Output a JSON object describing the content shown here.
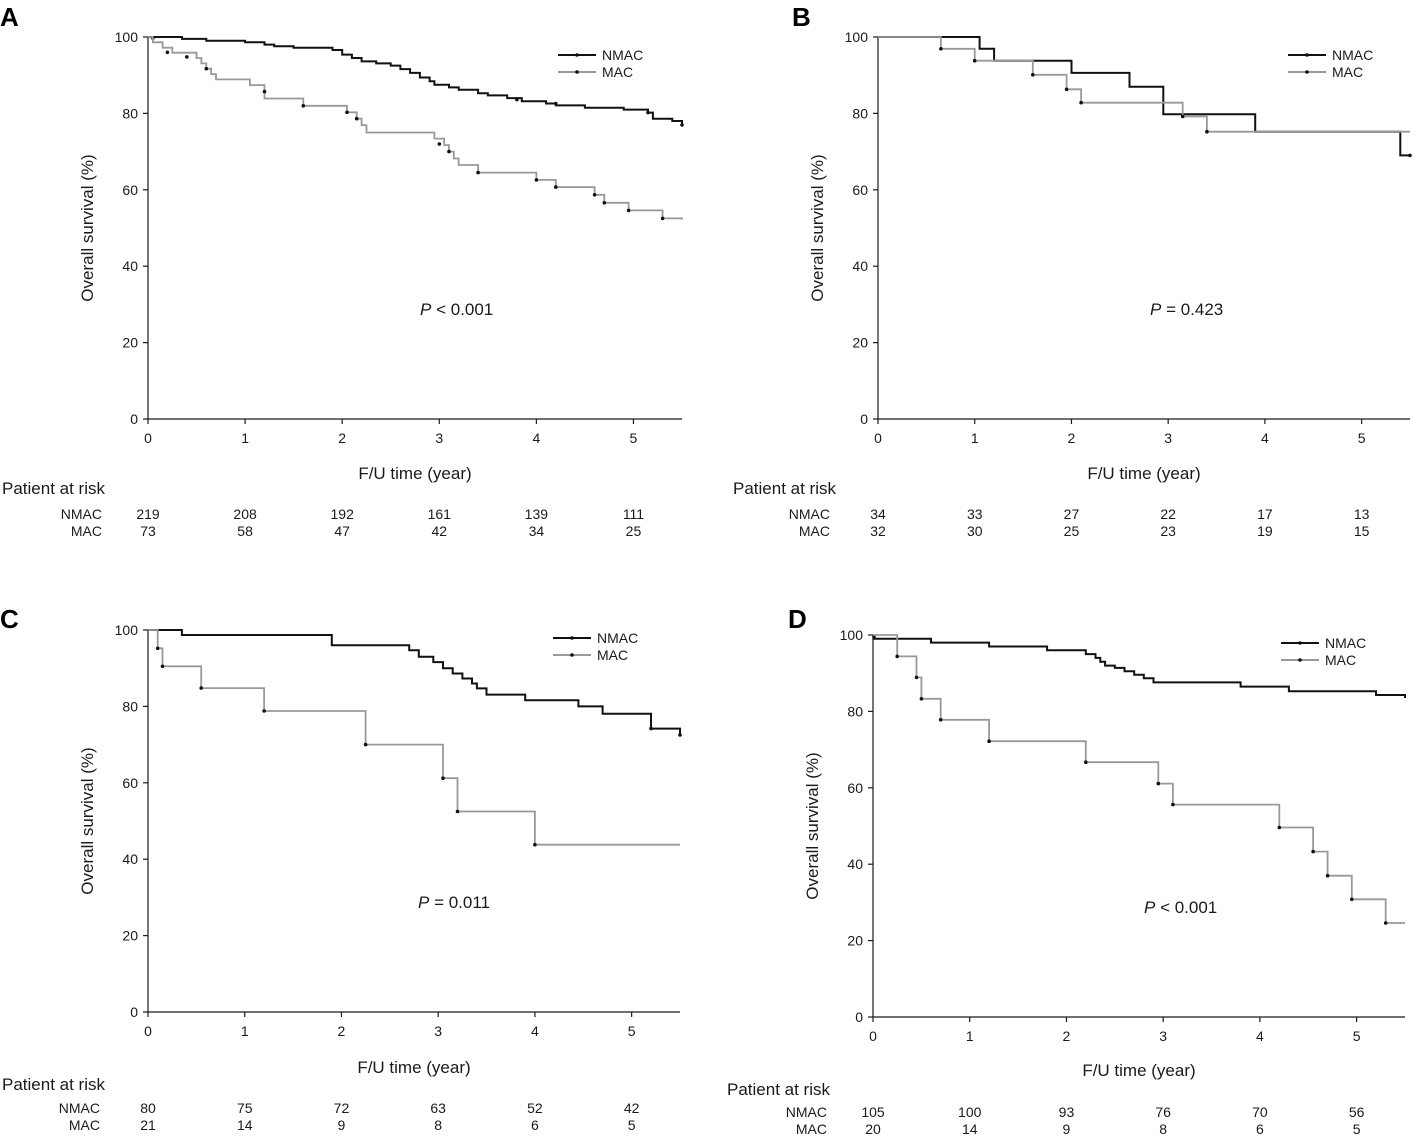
{
  "colors": {
    "NMAC": "#111111",
    "MAC": "#999999",
    "axis": "#1a1a1a"
  },
  "chart_data": [
    {
      "panel": "A",
      "type": "line",
      "xlabel": "F/U time (year)",
      "ylabel": "Overall survival (%)",
      "xlim": [
        0,
        5.5
      ],
      "ylim": [
        0,
        100
      ],
      "xticks": [
        0,
        1,
        2,
        3,
        4,
        5
      ],
      "yticks": [
        0,
        20,
        40,
        60,
        80,
        100
      ],
      "legend": [
        "NMAC",
        "MAC"
      ],
      "p_value": {
        "prefix": "P",
        "text": " < 0.001"
      },
      "risk_title": "Patient at risk",
      "risk_table": [
        {
          "label": "NMAC",
          "values": [
            "219",
            "208",
            "192",
            "161",
            "139",
            "111"
          ]
        },
        {
          "label": "MAC",
          "values": [
            "73",
            "58",
            "47",
            "42",
            "34",
            "25"
          ]
        }
      ],
      "series": [
        {
          "name": "NMAC",
          "points": [
            [
              0,
              100
            ],
            [
              0.35,
              99.5
            ],
            [
              0.6,
              99
            ],
            [
              1,
              98.6
            ],
            [
              1.2,
              98
            ],
            [
              1.3,
              97.6
            ],
            [
              1.5,
              97.2
            ],
            [
              1.9,
              96.6
            ],
            [
              2.0,
              95.4
            ],
            [
              2.1,
              94.5
            ],
            [
              2.2,
              93.6
            ],
            [
              2.35,
              93.1
            ],
            [
              2.5,
              92.5
            ],
            [
              2.6,
              91.6
            ],
            [
              2.7,
              90.6
            ],
            [
              2.8,
              89.4
            ],
            [
              2.9,
              88.4
            ],
            [
              2.95,
              87.5
            ],
            [
              3.1,
              86.8
            ],
            [
              3.2,
              86.2
            ],
            [
              3.4,
              85.3
            ],
            [
              3.5,
              84.7
            ],
            [
              3.7,
              84
            ],
            [
              3.85,
              83.2
            ],
            [
              4.1,
              82.6
            ],
            [
              4.2,
              82.1
            ],
            [
              4.5,
              81.5
            ],
            [
              4.9,
              81
            ],
            [
              5.15,
              80.2
            ],
            [
              5.2,
              78.6
            ],
            [
              5.4,
              78
            ],
            [
              5.5,
              77
            ]
          ],
          "censor": [
            [
              0.05,
              99.7
            ],
            [
              3.8,
              83.6
            ],
            [
              4.2,
              82.6
            ],
            [
              5.15,
              80.2
            ],
            [
              5.5,
              77
            ]
          ]
        },
        {
          "name": "MAC",
          "points": [
            [
              0,
              100
            ],
            [
              0.05,
              98.6
            ],
            [
              0.15,
              97.2
            ],
            [
              0.25,
              95.9
            ],
            [
              0.5,
              94.5
            ],
            [
              0.55,
              93.1
            ],
            [
              0.6,
              91.7
            ],
            [
              0.65,
              90.3
            ],
            [
              0.7,
              88.9
            ],
            [
              1.05,
              87.4
            ],
            [
              1.2,
              85.7
            ],
            [
              1.2,
              83.9
            ],
            [
              1.6,
              82
            ],
            [
              2.05,
              80.3
            ],
            [
              2.15,
              78.6
            ],
            [
              2.2,
              76.9
            ],
            [
              2.25,
              75
            ],
            [
              2.95,
              73.4
            ],
            [
              3.05,
              71.7
            ],
            [
              3.1,
              70
            ],
            [
              3.15,
              68.2
            ],
            [
              3.2,
              66.5
            ],
            [
              3.4,
              64.5
            ],
            [
              4.0,
              62.6
            ],
            [
              4.2,
              60.7
            ],
            [
              4.6,
              58.7
            ],
            [
              4.7,
              56.6
            ],
            [
              4.95,
              54.6
            ],
            [
              5.3,
              52.5
            ],
            [
              5.5,
              52.2
            ]
          ],
          "censor": [
            [
              0.2,
              96
            ],
            [
              0.4,
              94.8
            ],
            [
              0.6,
              91.7
            ],
            [
              1.2,
              85.7
            ],
            [
              1.6,
              82
            ],
            [
              2.05,
              80.3
            ],
            [
              2.15,
              78.6
            ],
            [
              3.0,
              72
            ],
            [
              3.1,
              70
            ],
            [
              3.4,
              64.5
            ],
            [
              4.0,
              62.6
            ],
            [
              4.2,
              60.7
            ],
            [
              4.6,
              58.7
            ],
            [
              4.7,
              56.6
            ],
            [
              4.95,
              54.6
            ],
            [
              5.3,
              52.5
            ]
          ]
        }
      ]
    },
    {
      "panel": "B",
      "type": "line",
      "xlabel": "F/U time (year)",
      "ylabel": "Overall survival (%)",
      "xlim": [
        0,
        5.5
      ],
      "ylim": [
        0,
        100
      ],
      "xticks": [
        0,
        1,
        2,
        3,
        4,
        5
      ],
      "yticks": [
        0,
        20,
        40,
        60,
        80,
        100
      ],
      "legend": [
        "NMAC",
        "MAC"
      ],
      "p_value": {
        "prefix": "P",
        "text": " = 0.423"
      },
      "risk_title": "Patient at risk",
      "risk_table": [
        {
          "label": "NMAC",
          "values": [
            "34",
            "33",
            "27",
            "22",
            "17",
            "13"
          ]
        },
        {
          "label": "MAC",
          "values": [
            "32",
            "30",
            "25",
            "23",
            "19",
            "15"
          ]
        }
      ],
      "series": [
        {
          "name": "NMAC",
          "points": [
            [
              0,
              100
            ],
            [
              1.05,
              96.9
            ],
            [
              1.2,
              93.8
            ],
            [
              2.0,
              90.6
            ],
            [
              2.6,
              87
            ],
            [
              2.95,
              79.8
            ],
            [
              3.9,
              75.2
            ],
            [
              5.4,
              75.2
            ],
            [
              5.4,
              69
            ],
            [
              5.5,
              69
            ]
          ],
          "censor": [
            [
              5.5,
              69
            ]
          ]
        },
        {
          "name": "MAC",
          "points": [
            [
              0,
              100
            ],
            [
              0.65,
              96.9
            ],
            [
              1.0,
              93.8
            ],
            [
              1.6,
              90.1
            ],
            [
              1.95,
              86.3
            ],
            [
              2.1,
              82.8
            ],
            [
              3.15,
              79.2
            ],
            [
              3.4,
              75.2
            ],
            [
              5.5,
              75.2
            ]
          ],
          "censor": [
            [
              0.65,
              96.9
            ],
            [
              1.0,
              93.8
            ],
            [
              1.6,
              90.1
            ],
            [
              1.95,
              86.3
            ],
            [
              2.1,
              82.8
            ],
            [
              3.15,
              79.2
            ],
            [
              3.4,
              75.2
            ]
          ]
        }
      ]
    },
    {
      "panel": "C",
      "type": "line",
      "xlabel": "F/U time (year)",
      "ylabel": "Overall survival (%)",
      "xlim": [
        0,
        5.5
      ],
      "ylim": [
        0,
        100
      ],
      "xticks": [
        0,
        1,
        2,
        3,
        4,
        5
      ],
      "yticks": [
        0,
        20,
        40,
        60,
        80,
        100
      ],
      "legend": [
        "NMAC",
        "MAC"
      ],
      "p_value": {
        "prefix": "P",
        "text": " = 0.011"
      },
      "risk_title": "Patient at risk",
      "risk_table": [
        {
          "label": "NMAC",
          "values": [
            "80",
            "75",
            "72",
            "63",
            "52",
            "42"
          ]
        },
        {
          "label": "MAC",
          "values": [
            "21",
            "14",
            "9",
            "8",
            "6",
            "5"
          ]
        }
      ],
      "series": [
        {
          "name": "NMAC",
          "points": [
            [
              0,
              100
            ],
            [
              0.35,
              98.7
            ],
            [
              1.9,
              96
            ],
            [
              2.7,
              94.7
            ],
            [
              2.8,
              93
            ],
            [
              2.95,
              91.6
            ],
            [
              3.05,
              90
            ],
            [
              3.15,
              88.6
            ],
            [
              3.25,
              87.3
            ],
            [
              3.35,
              86
            ],
            [
              3.4,
              84.7
            ],
            [
              3.5,
              83.1
            ],
            [
              3.9,
              81.6
            ],
            [
              4.45,
              80
            ],
            [
              4.7,
              78.1
            ],
            [
              5.2,
              74.2
            ],
            [
              5.5,
              72.5
            ]
          ],
          "censor": [
            [
              5.2,
              74.2
            ],
            [
              5.5,
              72.5
            ]
          ]
        },
        {
          "name": "MAC",
          "points": [
            [
              0,
              100
            ],
            [
              0.1,
              95.2
            ],
            [
              0.15,
              90.5
            ],
            [
              0.55,
              84.8
            ],
            [
              1.2,
              78.8
            ],
            [
              2.25,
              70
            ],
            [
              3.05,
              61.2
            ],
            [
              3.2,
              52.5
            ],
            [
              4.0,
              43.8
            ],
            [
              5.5,
              43.8
            ]
          ],
          "censor": [
            [
              0.1,
              95.2
            ],
            [
              0.15,
              90.5
            ],
            [
              0.55,
              84.8
            ],
            [
              1.2,
              78.8
            ],
            [
              2.25,
              70
            ],
            [
              3.05,
              61.2
            ],
            [
              3.2,
              52.5
            ],
            [
              4.0,
              43.8
            ]
          ]
        }
      ]
    },
    {
      "panel": "D",
      "type": "line",
      "xlabel": "F/U time (year)",
      "ylabel": "Overall survival (%)",
      "xlim": [
        0,
        5.5
      ],
      "ylim": [
        0,
        100
      ],
      "xticks": [
        0,
        1,
        2,
        3,
        4,
        5
      ],
      "yticks": [
        0,
        20,
        40,
        60,
        80,
        100
      ],
      "legend": [
        "NMAC",
        "MAC"
      ],
      "p_value": {
        "prefix": "P",
        "text": " < 0.001"
      },
      "risk_title": "Patient at risk",
      "risk_table": [
        {
          "label": "NMAC",
          "values": [
            "105",
            "100",
            "93",
            "76",
            "70",
            "56"
          ]
        },
        {
          "label": "MAC",
          "values": [
            "20",
            "14",
            "9",
            "8",
            "6",
            "5"
          ]
        }
      ],
      "series": [
        {
          "name": "NMAC",
          "points": [
            [
              0,
              99
            ],
            [
              0.3,
              99
            ],
            [
              0.6,
              98
            ],
            [
              1.2,
              97
            ],
            [
              1.8,
              96
            ],
            [
              2.2,
              95
            ],
            [
              2.3,
              94
            ],
            [
              2.35,
              93
            ],
            [
              2.4,
              92
            ],
            [
              2.5,
              91.4
            ],
            [
              2.6,
              90.5
            ],
            [
              2.7,
              89.6
            ],
            [
              2.8,
              88.7
            ],
            [
              2.9,
              87.6
            ],
            [
              3.5,
              87.6
            ],
            [
              3.8,
              86.5
            ],
            [
              4.3,
              85.3
            ],
            [
              5.2,
              84.3
            ],
            [
              5.5,
              83.5
            ]
          ],
          "censor": [
            [
              0.01,
              99.5
            ]
          ]
        },
        {
          "name": "MAC",
          "points": [
            [
              0,
              100
            ],
            [
              0.25,
              94.4
            ],
            [
              0.45,
              88.9
            ],
            [
              0.5,
              83.3
            ],
            [
              0.7,
              77.8
            ],
            [
              1.2,
              72.2
            ],
            [
              2.2,
              66.7
            ],
            [
              2.95,
              61.1
            ],
            [
              3.1,
              55.6
            ],
            [
              4.2,
              49.6
            ],
            [
              4.55,
              43.3
            ],
            [
              4.7,
              37
            ],
            [
              4.95,
              30.8
            ],
            [
              5.3,
              24.6
            ],
            [
              5.5,
              24.6
            ]
          ],
          "censor": [
            [
              0.25,
              94.4
            ],
            [
              0.45,
              88.9
            ],
            [
              0.5,
              83.3
            ],
            [
              0.7,
              77.8
            ],
            [
              1.2,
              72.2
            ],
            [
              2.2,
              66.7
            ],
            [
              2.95,
              61.1
            ],
            [
              3.1,
              55.6
            ],
            [
              4.2,
              49.6
            ],
            [
              4.55,
              43.3
            ],
            [
              4.7,
              37
            ],
            [
              4.95,
              30.8
            ],
            [
              5.3,
              24.6
            ]
          ]
        }
      ]
    }
  ]
}
